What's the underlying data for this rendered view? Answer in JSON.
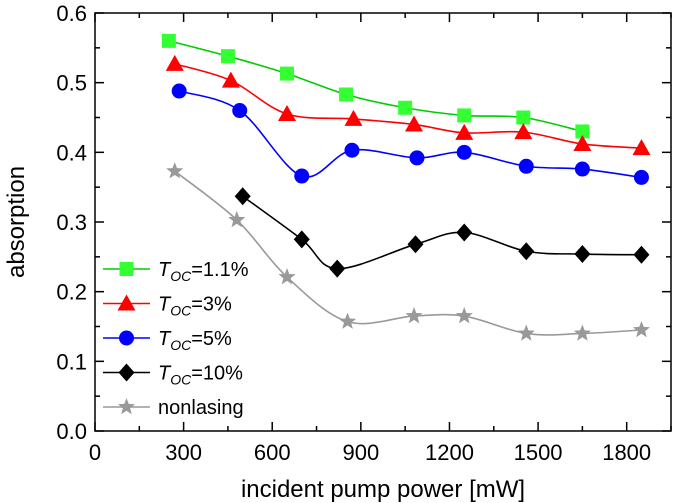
{
  "chart_data": {
    "type": "line",
    "xlabel": "incident pump power [mW]",
    "ylabel": "absorption",
    "xlim": [
      0,
      1950
    ],
    "ylim": [
      0.0,
      0.6
    ],
    "xticks": [
      0,
      300,
      600,
      900,
      1200,
      1500,
      1800
    ],
    "yticks": [
      0.0,
      0.1,
      0.2,
      0.3,
      0.4,
      0.5,
      0.6
    ],
    "xtick_labels": [
      "0",
      "300",
      "600",
      "900",
      "1200",
      "1500",
      "1800"
    ],
    "ytick_labels": [
      "0.0",
      "0.1",
      "0.2",
      "0.3",
      "0.4",
      "0.5",
      "0.6"
    ],
    "grid": false,
    "legend_position": "bottom-left",
    "series": [
      {
        "name": "T_OC=1.1%",
        "legend_italic": "T",
        "legend_sub": "OC",
        "legend_rest": "=1.1%",
        "color": "#00cc00",
        "marker_color": "#33ff33",
        "marker": "square",
        "x": [
          250,
          450,
          650,
          850,
          1050,
          1250,
          1450,
          1650
        ],
        "y": [
          0.56,
          0.538,
          0.513,
          0.483,
          0.464,
          0.453,
          0.45,
          0.43
        ]
      },
      {
        "name": "T_OC=3%",
        "legend_italic": "T",
        "legend_sub": "OC",
        "legend_rest": "=3%",
        "color": "#ff0000",
        "marker_color": "#ff0000",
        "marker": "triangle",
        "x": [
          270,
          460,
          650,
          875,
          1080,
          1250,
          1450,
          1650,
          1850
        ],
        "y": [
          0.527,
          0.503,
          0.455,
          0.448,
          0.44,
          0.428,
          0.429,
          0.412,
          0.406
        ]
      },
      {
        "name": "T_OC=5%",
        "legend_italic": "T",
        "legend_sub": "OC",
        "legend_rest": "=5%",
        "color": "#0000ff",
        "marker_color": "#0000ff",
        "marker": "circle",
        "x": [
          285,
          490,
          700,
          870,
          1090,
          1250,
          1460,
          1650,
          1850
        ],
        "y": [
          0.488,
          0.46,
          0.366,
          0.403,
          0.392,
          0.4,
          0.38,
          0.376,
          0.364
        ]
      },
      {
        "name": "T_OC=10%",
        "legend_italic": "T",
        "legend_sub": "OC",
        "legend_rest": "=10%",
        "color": "#000000",
        "marker_color": "#000000",
        "marker": "diamond",
        "x": [
          500,
          700,
          820,
          1085,
          1250,
          1460,
          1650,
          1850
        ],
        "y": [
          0.337,
          0.275,
          0.233,
          0.268,
          0.285,
          0.258,
          0.254,
          0.253
        ]
      },
      {
        "name": "nonlasing",
        "legend_italic": "",
        "legend_sub": "",
        "legend_rest": "nonlasing",
        "color": "#999999",
        "marker_color": "#999999",
        "marker": "star",
        "x": [
          270,
          480,
          650,
          855,
          1080,
          1250,
          1460,
          1650,
          1850
        ],
        "y": [
          0.373,
          0.303,
          0.221,
          0.157,
          0.165,
          0.165,
          0.14,
          0.14,
          0.145
        ]
      }
    ]
  }
}
